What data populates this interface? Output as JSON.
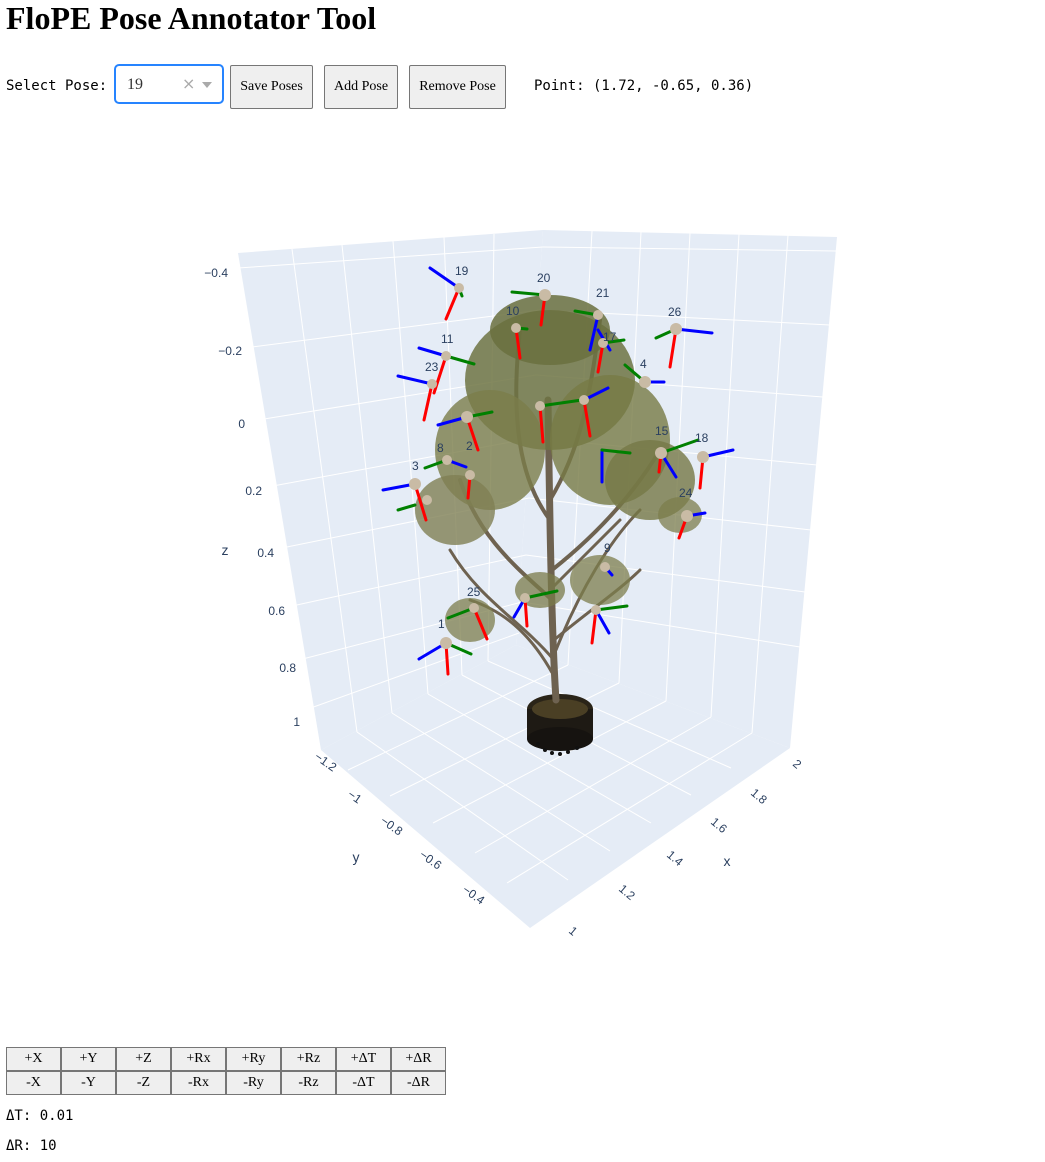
{
  "title": "FloPE Pose Annotator Tool",
  "toolbar": {
    "select_label": "Select Pose:",
    "selected_pose": "19",
    "clear_icon": "×",
    "save_label": "Save Poses",
    "add_label": "Add Pose",
    "remove_label": "Remove Pose",
    "point_readout": "Point: (1.72, -0.65, 0.36)"
  },
  "scene": {
    "background": "#e5ecf6",
    "grid_color": "#ffffff",
    "axis_x_color": "#ff0000",
    "axis_y_color": "#008000",
    "axis_z_color": "#0000ff",
    "x_axis": {
      "title": "x",
      "ticks": [
        "1",
        "1.2",
        "1.4",
        "1.6",
        "1.8",
        "2"
      ]
    },
    "y_axis": {
      "title": "y",
      "ticks": [
        "−1.2",
        "−1",
        "−0.8",
        "−0.6",
        "−0.4"
      ]
    },
    "z_axis": {
      "title": "z",
      "ticks": [
        "−0.4",
        "−0.2",
        "0",
        "0.2",
        "0.4",
        "0.6",
        "0.8",
        "1"
      ]
    },
    "pose_labels": [
      "19",
      "20",
      "21",
      "26",
      "11",
      "23",
      "8",
      "3",
      "15",
      "18",
      "24",
      "25",
      "9",
      "10",
      "17",
      "4",
      "2",
      "1"
    ]
  },
  "controls": {
    "row1": [
      "+X",
      "+Y",
      "+Z",
      "+Rx",
      "+Ry",
      "+Rz",
      "+ΔT",
      "+ΔR"
    ],
    "row2": [
      "-X",
      "-Y",
      "-Z",
      "-Rx",
      "-Ry",
      "-Rz",
      "-ΔT",
      "-ΔR"
    ]
  },
  "steps": {
    "delta_t": "ΔT: 0.01",
    "delta_r": "ΔR: 10"
  }
}
